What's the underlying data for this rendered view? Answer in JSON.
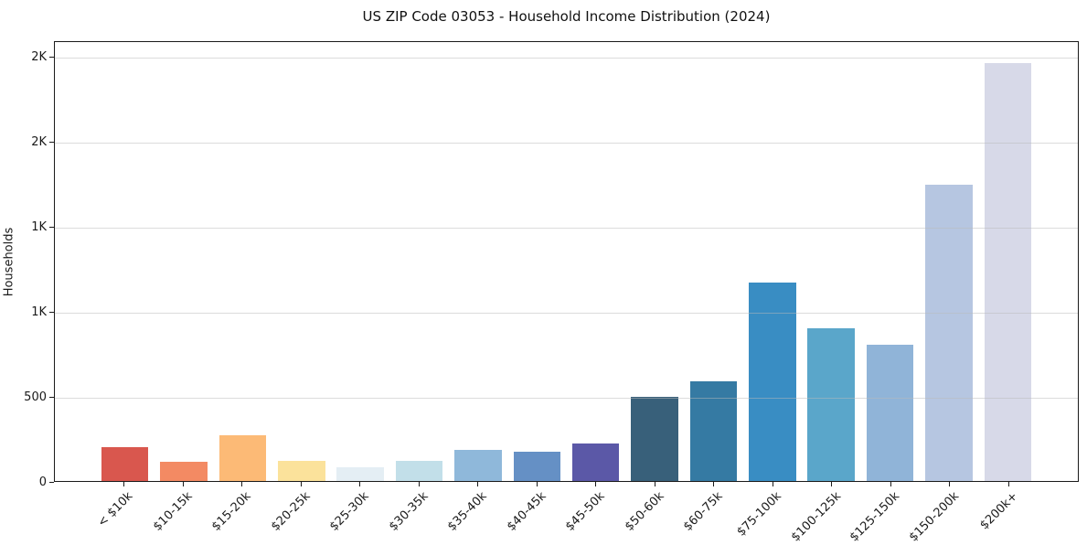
{
  "title": "US ZIP Code 03053 - Household Income Distribution (2024)",
  "chart_data": {
    "type": "bar",
    "title": "US ZIP Code 03053 - Household Income Distribution (2024)",
    "xlabel": "",
    "ylabel": "Households",
    "ylim": [
      0,
      2594
    ],
    "grid": "horizontal-light",
    "legend": "none",
    "categories": [
      "< $10k",
      "$10-15k",
      "$15-20k",
      "$20-25k",
      "$25-30k",
      "$30-35k",
      "$35-40k",
      "$40-45k",
      "$45-50k",
      "$50-60k",
      "$60-75k",
      "$75-100k",
      "$100-125k",
      "$125-150k",
      "$150-200k",
      "$200k+"
    ],
    "values": [
      200,
      115,
      270,
      120,
      80,
      120,
      185,
      175,
      220,
      495,
      590,
      1175,
      900,
      805,
      1750,
      2470
    ],
    "bar_colors": [
      "#d9574e",
      "#f38a63",
      "#fcba76",
      "#fbe29b",
      "#e4eef4",
      "#c2dfe9",
      "#8fb8da",
      "#6590c5",
      "#5b58a7",
      "#38607a",
      "#357aa3",
      "#398dc3",
      "#5aa6ca",
      "#90b4d8",
      "#b6c6e1",
      "#d7d9e8"
    ],
    "yticks": [
      {
        "value": 0,
        "label": "0"
      },
      {
        "value": 500,
        "label": "500"
      },
      {
        "value": 1000,
        "label": "1K"
      },
      {
        "value": 1500,
        "label": "1K"
      },
      {
        "value": 2000,
        "label": "2K"
      },
      {
        "value": 2500,
        "label": "2K"
      }
    ]
  }
}
